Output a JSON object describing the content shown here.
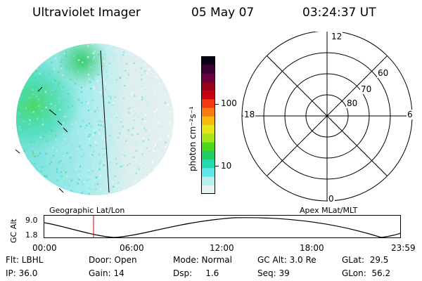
{
  "header": {
    "title": "Ultraviolet Imager",
    "date": "05 May 07",
    "time": "03:24:37 UT"
  },
  "colorbar": {
    "unit": "photon cm⁻²s⁻¹",
    "ticks": [
      "100",
      "10"
    ],
    "colors": [
      "#0a0014",
      "#3b0033",
      "#6a0040",
      "#9a0018",
      "#c90010",
      "#f23a10",
      "#f87a10",
      "#f8b80c",
      "#e8e61a",
      "#a8e41a",
      "#4ad81a",
      "#22cc66",
      "#22d8b0",
      "#60e6e6",
      "#b8f0f0",
      "#e8f4f4"
    ]
  },
  "polar_plot": {
    "top": "12",
    "left": "18",
    "right": "6",
    "bottom": "0",
    "rings": [
      "60",
      "70",
      "80"
    ]
  },
  "orbit_plot": {
    "left_title": "Geographic Lat/Lon",
    "right_title": "Apex MLat/MLT",
    "ylabel": "GC Alt",
    "yticks": [
      "9.0",
      "1.8"
    ],
    "xticks": [
      "00:00",
      "06:00",
      "12:00",
      "18:00",
      "23:59"
    ],
    "marker_color": "#cc0000"
  },
  "footer": {
    "flt": "Flt: LBHL",
    "door": "Door: Open",
    "mode": "Mode: Normal",
    "gcalt": "GC Alt: 3.0 Re",
    "glat": "GLat:  29.5",
    "ip": "IP: 36.0",
    "gain": "Gain: 14",
    "dsp": "Dsp:     1.6",
    "seq": "Seq: 39",
    "glon": "GLon:  56.2"
  }
}
